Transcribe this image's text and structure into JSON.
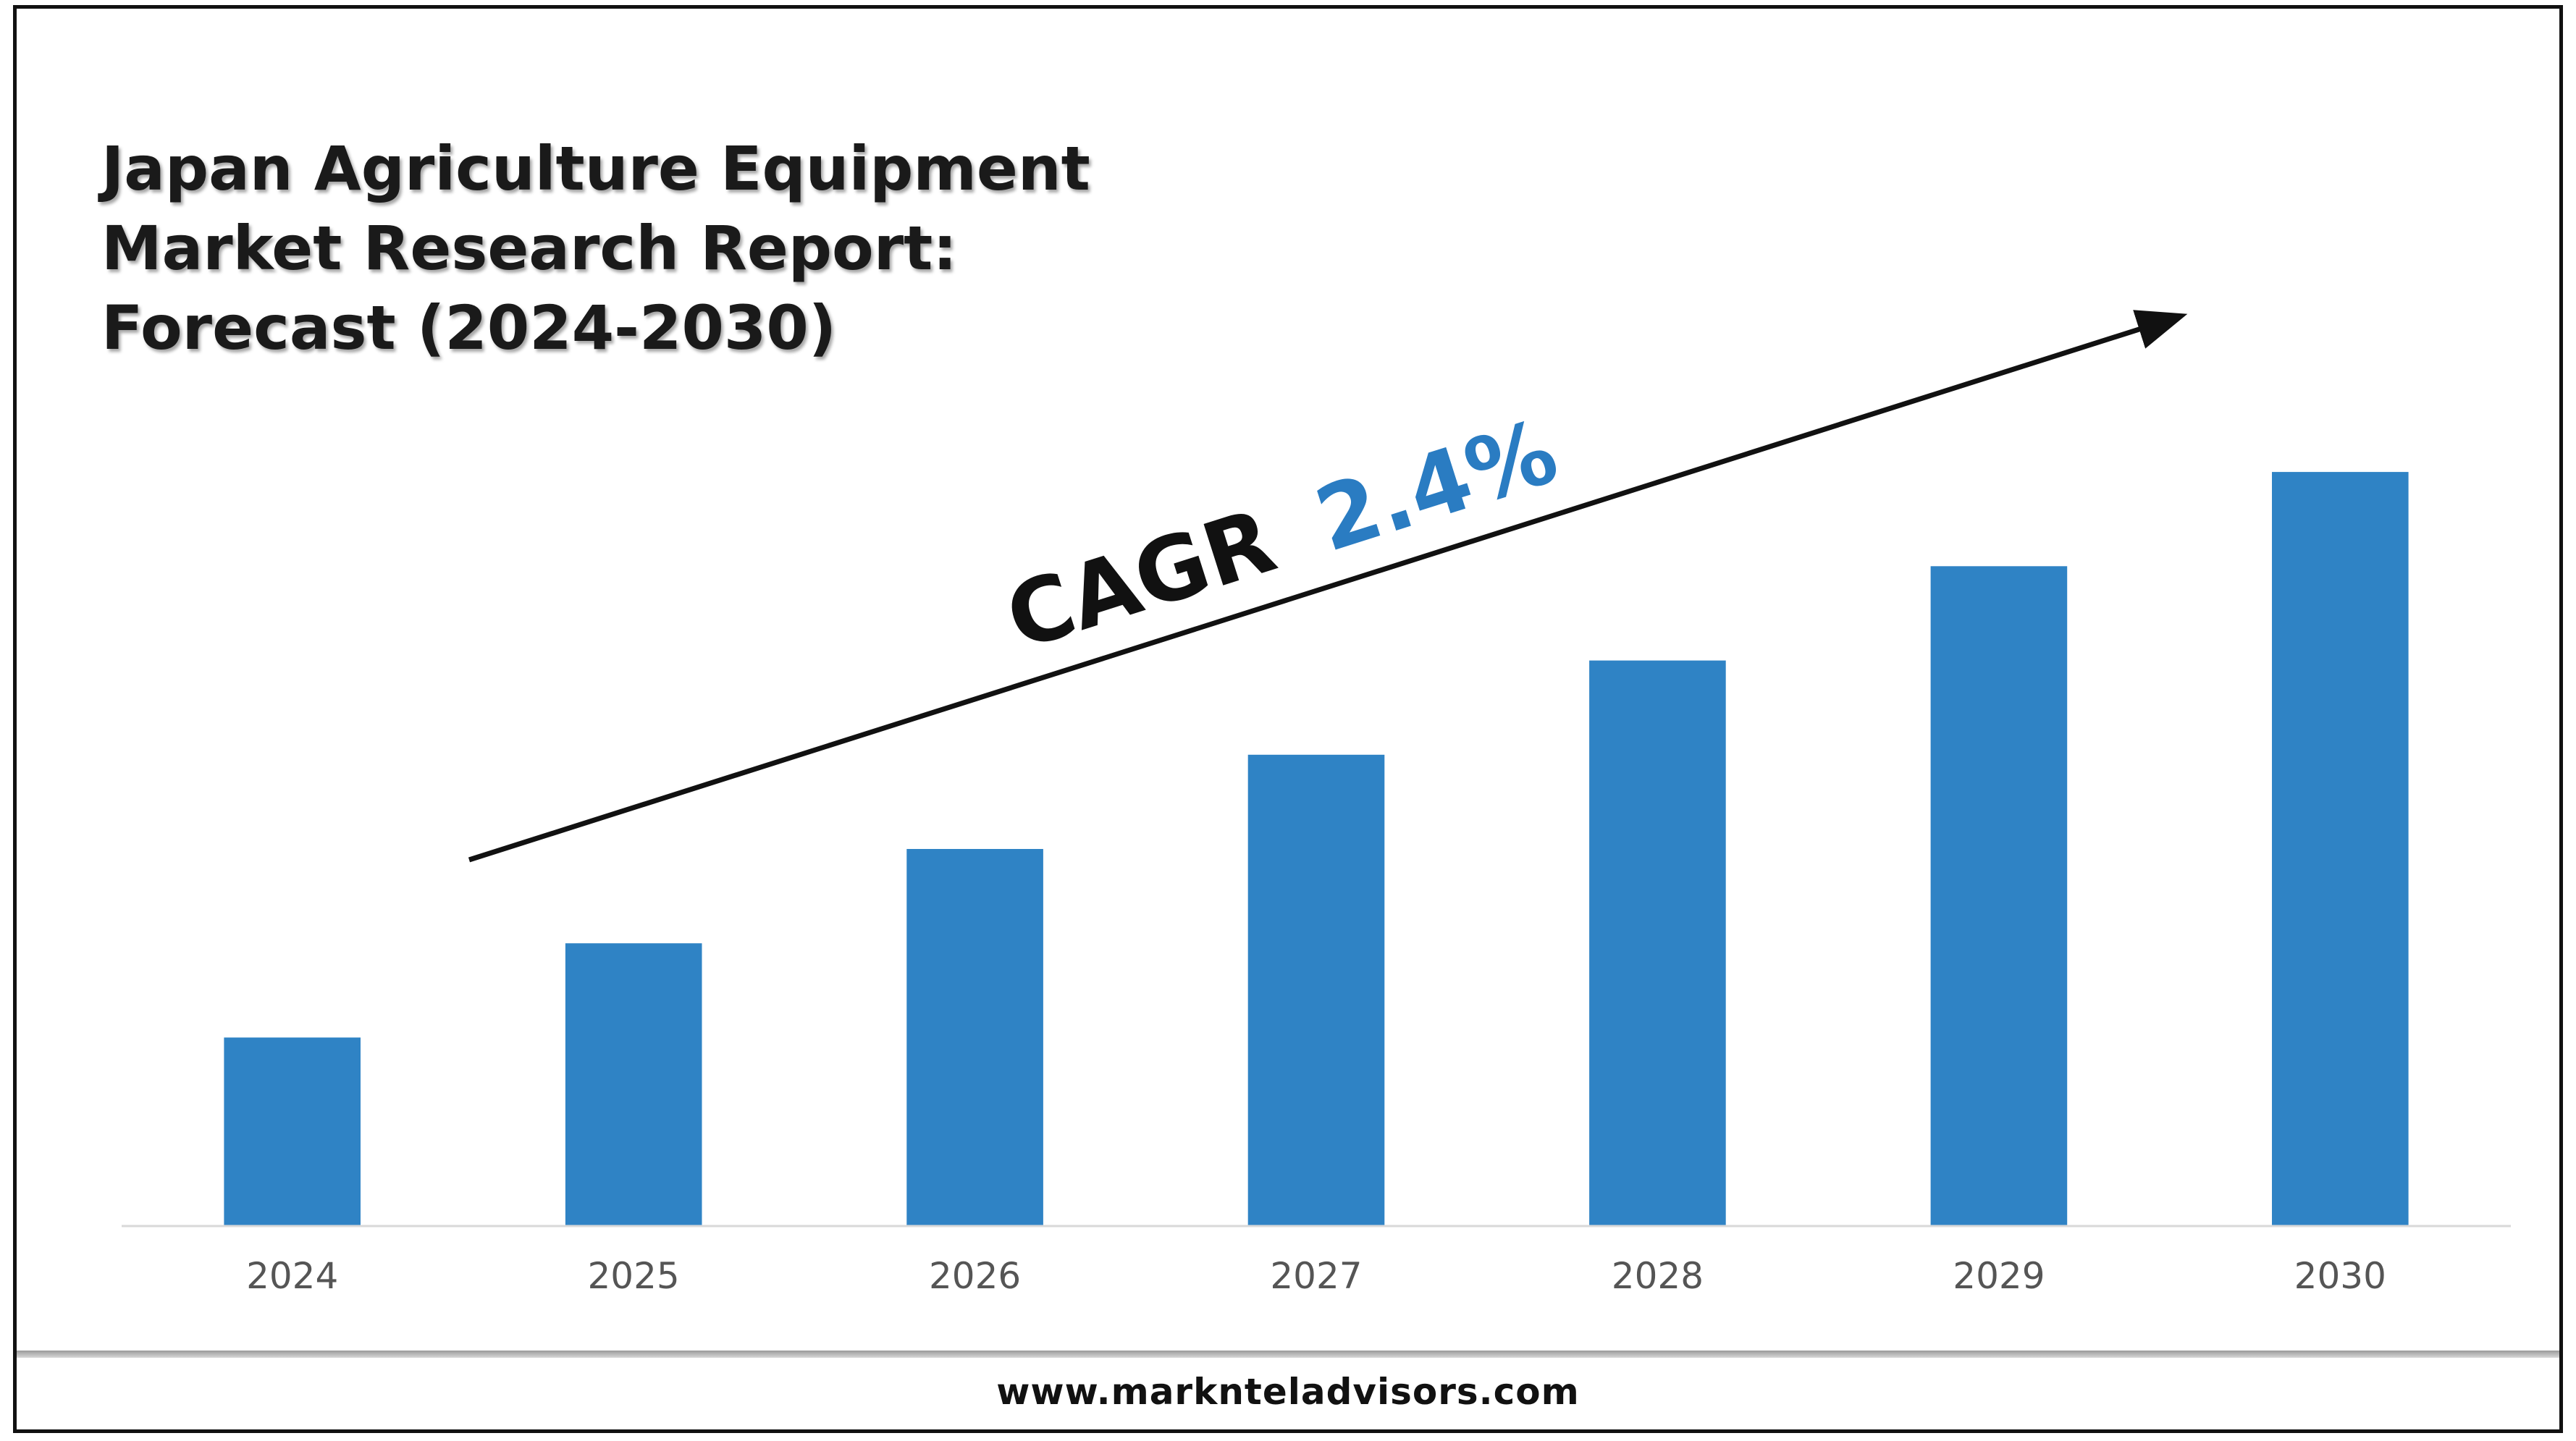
{
  "chart_data": {
    "type": "bar",
    "title": [
      "Japan Agriculture Equipment",
      "Market Research Report:",
      "Forecast (2024-2030)"
    ],
    "categories": [
      "2024",
      "2025",
      "2026",
      "2027",
      "2028",
      "2029",
      "2030"
    ],
    "values": [
      2,
      3,
      4,
      5,
      6,
      7,
      8
    ],
    "ylim": [
      0,
      8.4
    ],
    "bar_color": "#2f83c5",
    "grid": false,
    "annotation": {
      "label": "CAGR",
      "value": "2.4%",
      "label_color": "#111111",
      "value_color": "#2a7cc2"
    }
  },
  "footer": {
    "url": "www.marknteladvisors.com"
  }
}
